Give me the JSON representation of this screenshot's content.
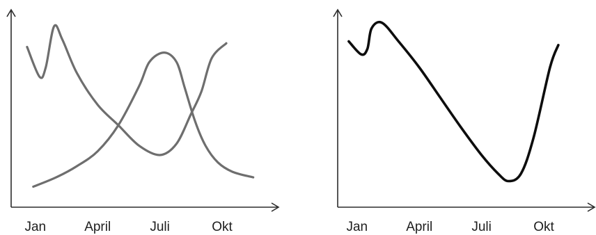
{
  "chart_data": [
    {
      "type": "line",
      "title": "",
      "xlabel": "",
      "ylabel": "",
      "grid": false,
      "legend": "none",
      "y_ticks_shown": false,
      "categories": [
        "Jan",
        "April",
        "Juli",
        "Okt"
      ],
      "x_range_months": [
        0.5,
        11.8
      ],
      "y_range": [
        0,
        100
      ],
      "series": [
        {
          "color": "#6e6e6e",
          "points": [
            [
              0.6,
              86
            ],
            [
              1.2,
              70
            ],
            [
              1.5,
              75
            ],
            [
              1.9,
              97
            ],
            [
              2.3,
              90
            ],
            [
              3.0,
              72
            ],
            [
              4.0,
              55
            ],
            [
              5.0,
              44
            ],
            [
              6.0,
              33
            ],
            [
              7.0,
              28
            ],
            [
              7.8,
              34
            ],
            [
              8.5,
              50
            ],
            [
              9.0,
              62
            ],
            [
              9.5,
              80
            ],
            [
              10.2,
              88
            ]
          ]
        },
        {
          "color": "#6e6e6e",
          "points": [
            [
              0.9,
              11
            ],
            [
              2.0,
              16
            ],
            [
              3.0,
              22
            ],
            [
              4.0,
              30
            ],
            [
              5.0,
              44
            ],
            [
              6.0,
              65
            ],
            [
              6.5,
              78
            ],
            [
              7.2,
              83
            ],
            [
              7.8,
              78
            ],
            [
              8.2,
              64
            ],
            [
              8.7,
              46
            ],
            [
              9.2,
              33
            ],
            [
              9.8,
              24
            ],
            [
              10.5,
              19
            ],
            [
              11.5,
              16
            ]
          ]
        }
      ]
    },
    {
      "type": "line",
      "title": "",
      "xlabel": "",
      "ylabel": "",
      "grid": false,
      "legend": "none",
      "y_ticks_shown": false,
      "categories": [
        "Jan",
        "April",
        "Juli",
        "Okt"
      ],
      "x_range_months": [
        0.5,
        11.8
      ],
      "y_range": [
        0,
        100
      ],
      "series": [
        {
          "color": "#0d0d0d",
          "points": [
            [
              0.6,
              89
            ],
            [
              1.2,
              82
            ],
            [
              1.5,
              85
            ],
            [
              1.7,
              96
            ],
            [
              2.2,
              99
            ],
            [
              3.0,
              89
            ],
            [
              4.0,
              75
            ],
            [
              5.0,
              59
            ],
            [
              6.0,
              43
            ],
            [
              7.0,
              28
            ],
            [
              7.8,
              18
            ],
            [
              8.3,
              14
            ],
            [
              8.9,
              18
            ],
            [
              9.5,
              37
            ],
            [
              10.3,
              75
            ],
            [
              10.7,
              87
            ]
          ]
        }
      ]
    }
  ]
}
